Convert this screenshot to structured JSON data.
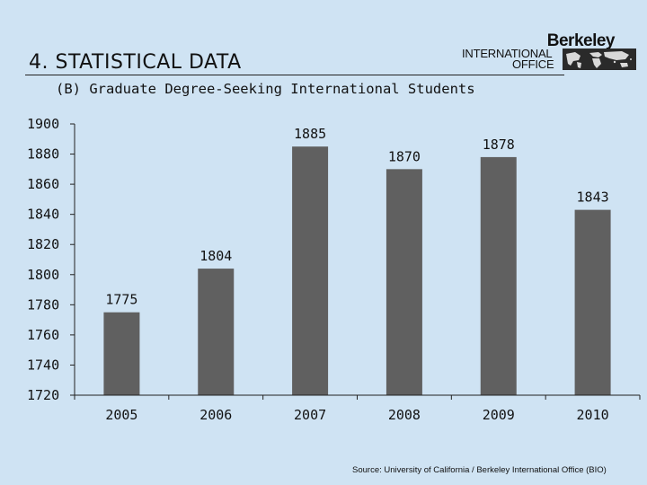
{
  "slide": {
    "title": "4. STATISTICAL DATA",
    "subtitle": "(B) Graduate Degree-Seeking International Students",
    "source": "Source: University of California / Berkeley International Office (BIO)"
  },
  "logo": {
    "line1": "Berkeley",
    "line2": "INTERNATIONAL",
    "line3": "OFFICE",
    "icon": "world-map-icon"
  },
  "colors": {
    "background": "#cfe3f3",
    "bar": "#606060",
    "axis": "#222222"
  },
  "chart_data": {
    "type": "bar",
    "title": "",
    "xlabel": "",
    "ylabel": "",
    "categories": [
      "2005",
      "2006",
      "2007",
      "2008",
      "2009",
      "2010"
    ],
    "values": [
      1775,
      1804,
      1885,
      1870,
      1878,
      1843
    ],
    "data_labels": [
      "1775",
      "1804",
      "1885",
      "1870",
      "1878",
      "1843"
    ],
    "ylim": [
      1720,
      1900
    ],
    "yticks": [
      1720,
      1740,
      1760,
      1780,
      1800,
      1820,
      1840,
      1860,
      1880,
      1900
    ],
    "grid": false,
    "legend": "none"
  }
}
